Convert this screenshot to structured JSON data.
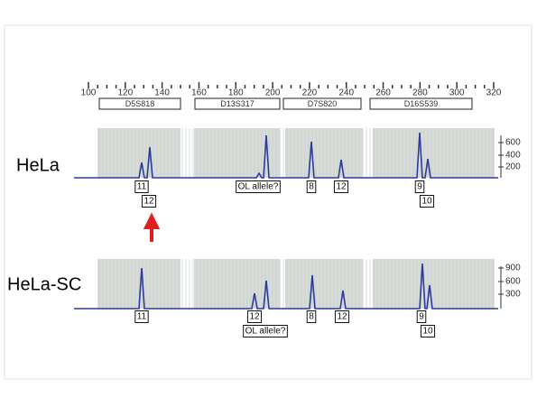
{
  "scale": {
    "ticks": [
      "100",
      "120",
      "140",
      "160",
      "180",
      "200",
      "220",
      "240",
      "260",
      "280",
      "300",
      "320"
    ]
  },
  "markers": [
    "D5S818",
    "D13S317",
    "D7S820",
    "D16S539"
  ],
  "panels": [
    {
      "name": "HeLa",
      "y_ticks": [
        "600",
        "400",
        "200"
      ],
      "alleles": [
        "11",
        "12",
        "OL allele?",
        "8",
        "12",
        "9",
        "10"
      ]
    },
    {
      "name": "HeLa-SC",
      "y_ticks": [
        "900",
        "600",
        "300"
      ],
      "alleles": [
        "11",
        "12",
        "OL allele?",
        "8",
        "12",
        "9",
        "10"
      ]
    }
  ]
}
